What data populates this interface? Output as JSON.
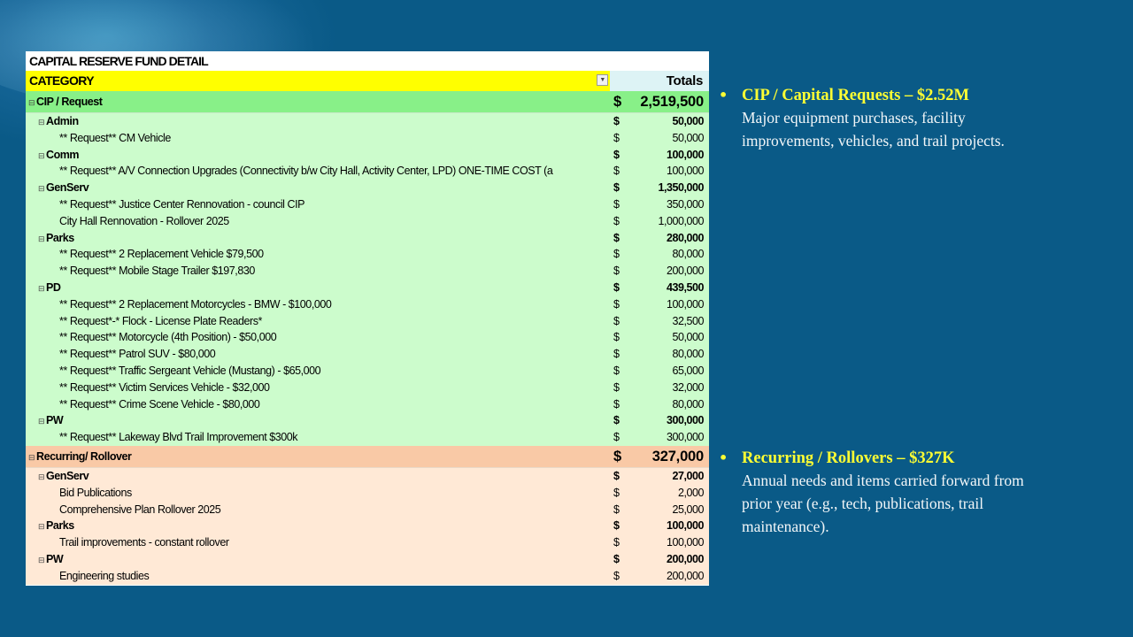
{
  "sheet": {
    "title": "CAPITAL RESERVE FUND DETAIL",
    "category_header": "CATEGORY",
    "totals_header": "Totals",
    "filter_icon": "filter-dropdown-icon",
    "sections": [
      {
        "label": "CIP / Request",
        "currency": "$",
        "total": "2,519,500",
        "color": "#88f088",
        "row_color": "#ccfccc",
        "groups": [
          {
            "label": "Admin",
            "currency": "$",
            "total": "50,000",
            "items": [
              {
                "label": "** Request** CM Vehicle",
                "currency": "$",
                "amount": "50,000"
              }
            ]
          },
          {
            "label": "Comm",
            "currency": "$",
            "total": "100,000",
            "items": [
              {
                "label": "** Request** A/V Connection Upgrades (Connectivity b/w City Hall, Activity Center, LPD) ONE-TIME COST (a",
                "currency": "$",
                "amount": "100,000"
              }
            ]
          },
          {
            "label": "GenServ",
            "currency": "$",
            "total": "1,350,000",
            "items": [
              {
                "label": "** Request** Justice Center Rennovation - council CIP",
                "currency": "$",
                "amount": "350,000"
              },
              {
                "label": "City Hall Rennovation - Rollover 2025",
                "currency": "$",
                "amount": "1,000,000"
              }
            ]
          },
          {
            "label": "Parks",
            "currency": "$",
            "total": "280,000",
            "items": [
              {
                "label": "** Request** 2 Replacement Vehicle $79,500",
                "currency": "$",
                "amount": "80,000"
              },
              {
                "label": "** Request** Mobile Stage Trailer $197,830",
                "currency": "$",
                "amount": "200,000"
              }
            ]
          },
          {
            "label": "PD",
            "currency": "$",
            "total": "439,500",
            "items": [
              {
                "label": "** Request** 2 Replacement Motorcycles - BMW - $100,000",
                "currency": "$",
                "amount": "100,000"
              },
              {
                "label": "** Request*-* Flock - License Plate Readers*",
                "currency": "$",
                "amount": "32,500"
              },
              {
                "label": "** Request** Motorcycle (4th Position) - $50,000",
                "currency": "$",
                "amount": "50,000"
              },
              {
                "label": "** Request** Patrol SUV - $80,000",
                "currency": "$",
                "amount": "80,000"
              },
              {
                "label": "** Request** Traffic Sergeant Vehicle (Mustang) - $65,000",
                "currency": "$",
                "amount": "65,000"
              },
              {
                "label": "** Request** Victim Services Vehicle - $32,000",
                "currency": "$",
                "amount": "32,000"
              },
              {
                "label": "** Request** Crime Scene Vehicle - $80,000",
                "currency": "$",
                "amount": "80,000"
              }
            ]
          },
          {
            "label": "PW",
            "currency": "$",
            "total": "300,000",
            "items": [
              {
                "label": "** Request** Lakeway Blvd Trail Improvement $300k",
                "currency": "$",
                "amount": "300,000"
              }
            ]
          }
        ]
      },
      {
        "label": "Recurring/ Rollover",
        "currency": "$",
        "total": "327,000",
        "color": "#f9c9a6",
        "row_color": "#ffe9d6",
        "groups": [
          {
            "label": "GenServ",
            "currency": "$",
            "total": "27,000",
            "items": [
              {
                "label": "Bid Publications",
                "currency": "$",
                "amount": "2,000"
              },
              {
                "label": "Comprehensive Plan Rollover 2025",
                "currency": "$",
                "amount": "25,000"
              }
            ]
          },
          {
            "label": "Parks",
            "currency": "$",
            "total": "100,000",
            "items": [
              {
                "label": "Trail improvements - constant rollover",
                "currency": "$",
                "amount": "100,000"
              }
            ]
          },
          {
            "label": "PW",
            "currency": "$",
            "total": "200,000",
            "items": [
              {
                "label": "Engineering studies",
                "currency": "$",
                "amount": "200,000"
              }
            ]
          }
        ]
      }
    ]
  },
  "bullets": [
    {
      "heading": "CIP / Capital Requests – $2.52M",
      "body": "Major equipment purchases, facility improvements, vehicles, and trail projects."
    },
    {
      "heading": "Recurring / Rollovers – $327K",
      "body": "Annual needs and items carried forward from prior year (e.g., tech, publications, trail maintenance)."
    }
  ],
  "colors": {
    "bullet_heading": "#ffff33",
    "background": "#0a5a87",
    "category_header": "#ffff00"
  }
}
